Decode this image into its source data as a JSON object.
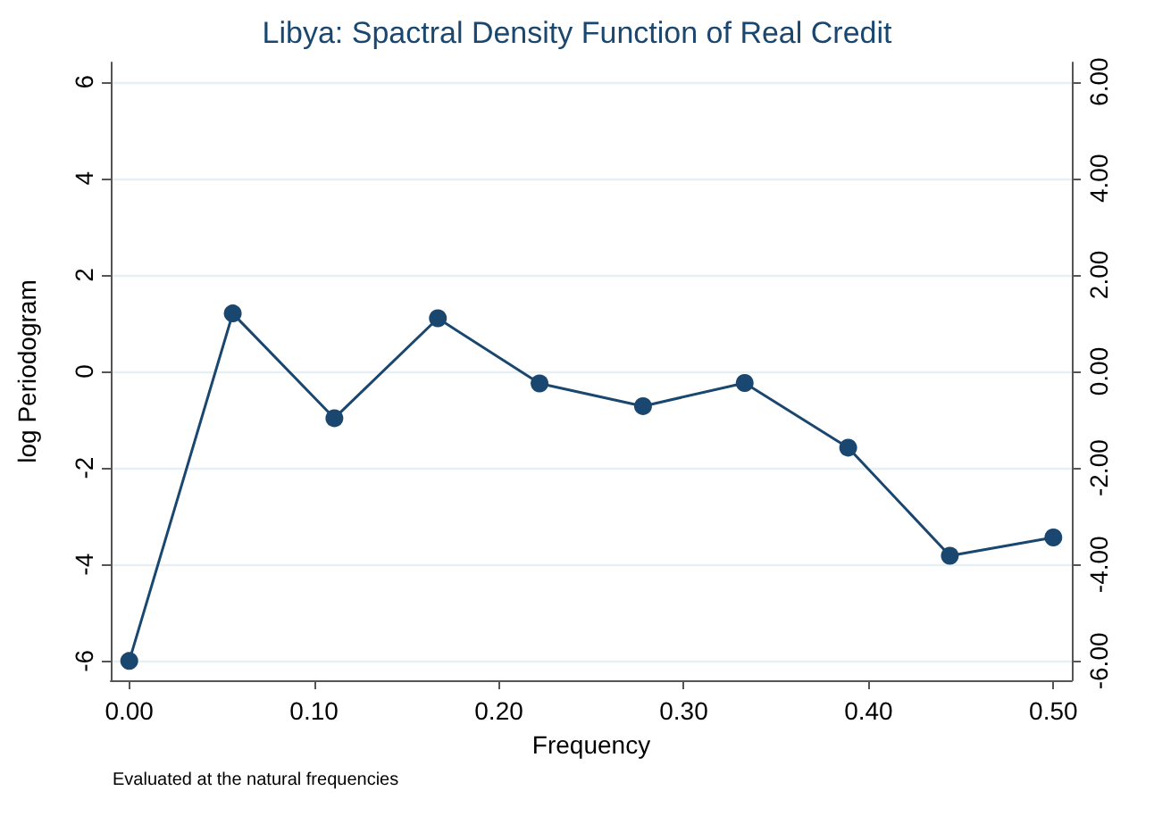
{
  "chart_data": {
    "type": "line",
    "title": "Libya: Spactral Density Function of Real Credit",
    "xlabel": "Frequency",
    "ylabel": "log Periodogram",
    "annotations": [
      "Evaluated at the natural frequencies"
    ],
    "x": [
      0,
      0.056,
      0.111,
      0.167,
      0.222,
      0.278,
      0.333,
      0.389,
      0.444,
      0.5
    ],
    "series": [
      {
        "color": "#1a476f",
        "values": [
          -6,
          1.2,
          -0.97,
          1.1,
          -0.25,
          -0.72,
          -0.24,
          -1.58,
          -3.82,
          -3.44
        ]
      }
    ],
    "xlim": [
      -0.01,
      0.51
    ],
    "xticks": [
      {
        "value": 0,
        "label": "0.00"
      },
      {
        "value": 0.1,
        "label": "0.10"
      },
      {
        "value": 0.2,
        "label": "0.20"
      },
      {
        "value": 0.3,
        "label": "0.30"
      },
      {
        "value": 0.4,
        "label": "0.40"
      },
      {
        "value": 0.5,
        "label": "0.50"
      }
    ],
    "ylim": [
      -6.4,
      6.4
    ],
    "yticks": [
      -6,
      -4,
      -2,
      0,
      2,
      4,
      6
    ],
    "y2lim": [
      -6.4,
      6.4
    ],
    "y2ticks": [
      {
        "value": -6,
        "label": "-6.00"
      },
      {
        "value": -4,
        "label": "-4.00"
      },
      {
        "value": -2,
        "label": "-2.00"
      },
      {
        "value": 0,
        "label": "0.00"
      },
      {
        "value": 2,
        "label": "2.00"
      },
      {
        "value": 4,
        "label": "4.00"
      },
      {
        "value": 6,
        "label": "6.00"
      }
    ],
    "grid": "y",
    "marker": "circle",
    "line_style": "solid"
  }
}
